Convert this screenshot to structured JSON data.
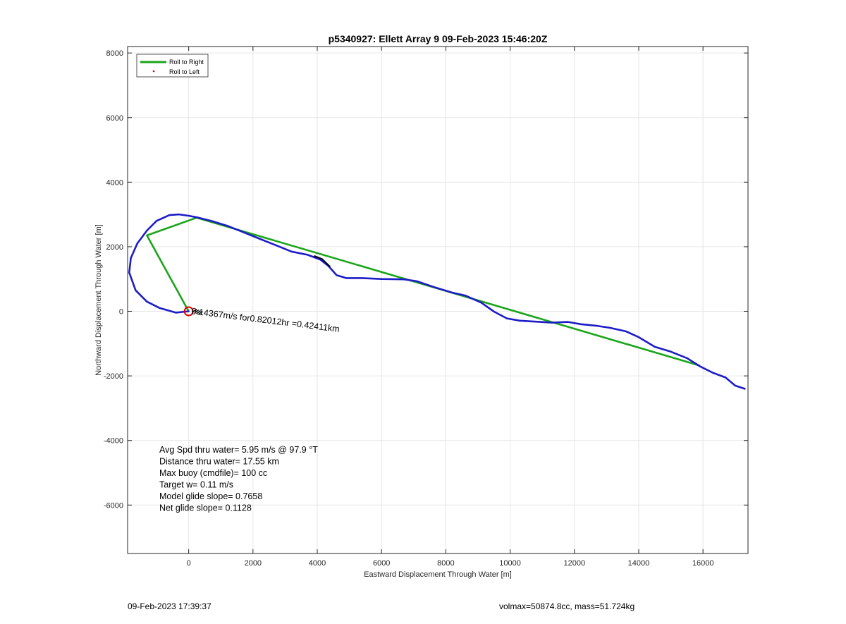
{
  "chart_data": {
    "type": "line",
    "title": "p5340927: Ellett Array 9 09-Feb-2023 15:46:20Z",
    "xlabel": "Eastward Displacement Through Water [m]",
    "ylabel": "Northward Displacement Through Water [m]",
    "xlim": [
      -1900,
      17400
    ],
    "ylim": [
      -7500,
      8200
    ],
    "xticks": [
      0,
      2000,
      4000,
      6000,
      8000,
      10000,
      12000,
      14000,
      16000
    ],
    "yticks": [
      -6000,
      -4000,
      -2000,
      0,
      2000,
      4000,
      6000,
      8000
    ],
    "xtick_labels": [
      "0",
      "2000",
      "4000",
      "6000",
      "8000",
      "10000",
      "12000",
      "14000",
      "16000"
    ],
    "ytick_labels": [
      "-6000",
      "-4000",
      "-2000",
      "0",
      "2000",
      "4000",
      "6000",
      "8000"
    ],
    "grid": true,
    "legend_placement": "top-left",
    "legend": [
      {
        "label": "Roll to Right",
        "color": "#1aa51a",
        "style": "line"
      },
      {
        "label": "Roll to Left",
        "color": "#e00000",
        "style": "dot"
      }
    ],
    "series": [
      {
        "name": "Roll to Right",
        "color": "#1aa51a",
        "points": [
          [
            0,
            0
          ],
          [
            -1300,
            2350
          ],
          [
            250,
            2900
          ],
          [
            15900,
            -1680
          ]
        ]
      },
      {
        "color": "#1c1cc8",
        "points": [
          [
            0,
            0
          ],
          [
            -400,
            -40
          ],
          [
            -900,
            100
          ],
          [
            -1300,
            300
          ],
          [
            -1650,
            650
          ],
          [
            -1850,
            1200
          ],
          [
            -1800,
            1650
          ],
          [
            -1600,
            2100
          ],
          [
            -1300,
            2500
          ],
          [
            -1000,
            2800
          ],
          [
            -600,
            2980
          ],
          [
            -300,
            3000
          ],
          [
            0,
            2960
          ],
          [
            300,
            2900
          ],
          [
            700,
            2800
          ],
          [
            1200,
            2650
          ],
          [
            1700,
            2450
          ],
          [
            2200,
            2250
          ],
          [
            2700,
            2050
          ],
          [
            3200,
            1850
          ],
          [
            3700,
            1750
          ],
          [
            4100,
            1600
          ],
          [
            4350,
            1400
          ],
          [
            4600,
            1120
          ],
          [
            4900,
            1030
          ],
          [
            5400,
            1030
          ],
          [
            6000,
            1000
          ],
          [
            6700,
            990
          ],
          [
            7100,
            930
          ],
          [
            7600,
            760
          ],
          [
            8200,
            580
          ],
          [
            8600,
            490
          ],
          [
            9100,
            270
          ],
          [
            9500,
            -10
          ],
          [
            9900,
            -220
          ],
          [
            10300,
            -290
          ],
          [
            10800,
            -320
          ],
          [
            11300,
            -350
          ],
          [
            11800,
            -330
          ],
          [
            12200,
            -400
          ],
          [
            12700,
            -450
          ],
          [
            13100,
            -510
          ],
          [
            13600,
            -620
          ],
          [
            14000,
            -800
          ],
          [
            14500,
            -1100
          ],
          [
            15000,
            -1250
          ],
          [
            15500,
            -1450
          ],
          [
            15900,
            -1700
          ],
          [
            16300,
            -1900
          ],
          [
            16700,
            -2050
          ],
          [
            17000,
            -2300
          ],
          [
            17300,
            -2400
          ]
        ]
      }
    ],
    "black_segment": [
      [
        3900,
        1720
      ],
      [
        4150,
        1620
      ],
      [
        4400,
        1380
      ]
    ],
    "start_marker": {
      "x": 0,
      "y": 0,
      "color": "#e00000"
    },
    "annotation": {
      "text": "0.14367m/s for0.82012hr =0.42411km",
      "x": 80,
      "y": -80,
      "rotation_deg": -7
    },
    "stats_lines": [
      "Avg Spd thru water=  5.95 m/s @  97.9 °T",
      "Distance thru water= 17.55 km",
      "Max buoy (cmdfile)= 100 cc",
      "Target w= 0.11 m/s",
      "Model glide slope= 0.7658",
      "Net glide slope= 0.1128"
    ]
  },
  "footer": {
    "left": "09-Feb-2023 17:39:37",
    "right": "volmax=50874.8cc, mass=51.724kg"
  }
}
